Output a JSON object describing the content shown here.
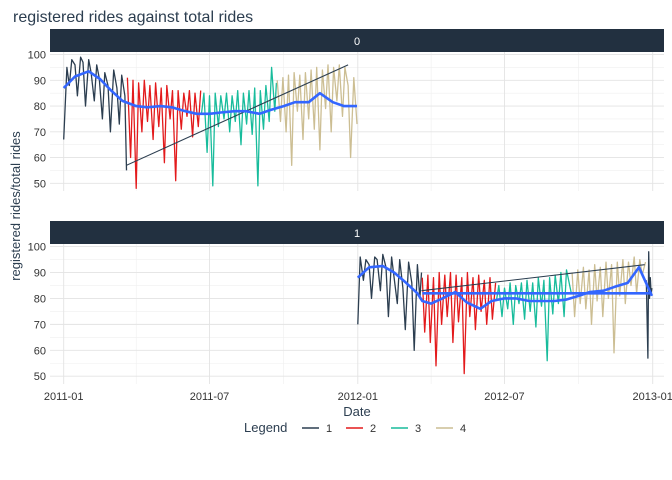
{
  "chart_data": {
    "type": "line",
    "title": "registered rides against total rides",
    "xlabel": "Date",
    "ylabel": "registered rides/total rides",
    "x_ticks": [
      "2011-01",
      "2011-07",
      "2012-01",
      "2012-07",
      "2013-01"
    ],
    "y_ticks": [
      50,
      60,
      70,
      80,
      90,
      100
    ],
    "ylim": [
      47,
      101
    ],
    "xlim": [
      "2010-12-15",
      "2013-01-15"
    ],
    "grid": true,
    "legend": {
      "title": "Legend",
      "placement": "bottom",
      "entries": [
        "1",
        "2",
        "3",
        "4"
      ]
    },
    "colors": {
      "series": [
        "#2c3e50",
        "#e31a1c",
        "#18bc9c",
        "#ccbe93"
      ],
      "smooth": "#3366ff",
      "trend": "#2c3e50",
      "strip": "#223040"
    },
    "facets": [
      {
        "label": "0",
        "series": [
          {
            "name": "1",
            "x": [
              "2011-01-01",
              "2011-01-05",
              "2011-01-08",
              "2011-01-11",
              "2011-01-15",
              "2011-01-18",
              "2011-01-22",
              "2011-01-25",
              "2011-01-28",
              "2011-02-01",
              "2011-02-04",
              "2011-02-08",
              "2011-02-11",
              "2011-02-14",
              "2011-02-18",
              "2011-02-21",
              "2011-02-25",
              "2011-02-28",
              "2011-03-04",
              "2011-03-08",
              "2011-03-11",
              "2011-03-14",
              "2011-03-18",
              "2011-03-20"
            ],
            "y": [
              67,
              95,
              88,
              98,
              96,
              84,
              99,
              97,
              80,
              98,
              93,
              82,
              96,
              91,
              75,
              93,
              88,
              70,
              94,
              87,
              73,
              92,
              84,
              55
            ]
          },
          {
            "name": "2",
            "x": [
              "2011-03-21",
              "2011-03-25",
              "2011-03-28",
              "2011-04-01",
              "2011-04-04",
              "2011-04-08",
              "2011-04-11",
              "2011-04-15",
              "2011-04-18",
              "2011-04-22",
              "2011-04-25",
              "2011-04-29",
              "2011-05-02",
              "2011-05-06",
              "2011-05-09",
              "2011-05-13",
              "2011-05-16",
              "2011-05-20",
              "2011-05-23",
              "2011-05-27",
              "2011-05-30",
              "2011-06-03",
              "2011-06-06",
              "2011-06-10",
              "2011-06-13",
              "2011-06-17",
              "2011-06-20"
            ],
            "y": [
              91,
              60,
              90,
              48,
              89,
              70,
              90,
              74,
              88,
              67,
              89,
              72,
              87,
              58,
              88,
              75,
              86,
              51,
              86,
              71,
              85,
              76,
              86,
              68,
              85,
              72,
              86
            ]
          },
          {
            "name": "3",
            "x": [
              "2011-06-21",
              "2011-06-24",
              "2011-06-28",
              "2011-07-01",
              "2011-07-05",
              "2011-07-08",
              "2011-07-12",
              "2011-07-15",
              "2011-07-19",
              "2011-07-22",
              "2011-07-26",
              "2011-07-29",
              "2011-08-02",
              "2011-08-05",
              "2011-08-09",
              "2011-08-12",
              "2011-08-16",
              "2011-08-19",
              "2011-08-23",
              "2011-08-26",
              "2011-08-30",
              "2011-09-02",
              "2011-09-06",
              "2011-09-09",
              "2011-09-13",
              "2011-09-16",
              "2011-09-20",
              "2011-09-22"
            ],
            "y": [
              77,
              85,
              62,
              84,
              49,
              85,
              72,
              84,
              75,
              85,
              70,
              84,
              74,
              86,
              65,
              85,
              73,
              86,
              69,
              87,
              49,
              86,
              71,
              88,
              74,
              95,
              78,
              89
            ]
          },
          {
            "name": "4",
            "x": [
              "2011-09-23",
              "2011-09-27",
              "2011-09-30",
              "2011-10-04",
              "2011-10-07",
              "2011-10-11",
              "2011-10-14",
              "2011-10-18",
              "2011-10-21",
              "2011-10-25",
              "2011-10-28",
              "2011-11-01",
              "2011-11-04",
              "2011-11-08",
              "2011-11-11",
              "2011-11-15",
              "2011-11-18",
              "2011-11-22",
              "2011-11-25",
              "2011-11-29",
              "2011-12-02",
              "2011-12-06",
              "2011-12-09",
              "2011-12-13",
              "2011-12-16",
              "2011-12-20",
              "2011-12-23",
              "2011-12-27",
              "2011-12-31"
            ],
            "y": [
              90,
              74,
              91,
              70,
              92,
              57,
              93,
              78,
              92,
              67,
              93,
              75,
              94,
              71,
              95,
              63,
              94,
              79,
              96,
              70,
              95,
              82,
              96,
              76,
              95,
              88,
              60,
              91,
              73
            ]
          }
        ],
        "smooth": {
          "x": [
            "2011-01-01",
            "2011-01-15",
            "2011-02-01",
            "2011-02-15",
            "2011-03-01",
            "2011-03-15",
            "2011-04-01",
            "2011-04-15",
            "2011-05-01",
            "2011-05-15",
            "2011-06-01",
            "2011-06-15",
            "2011-07-01",
            "2011-07-15",
            "2011-08-01",
            "2011-08-15",
            "2011-09-01",
            "2011-09-15",
            "2011-10-01",
            "2011-10-15",
            "2011-11-01",
            "2011-11-15",
            "2011-12-01",
            "2011-12-15",
            "2011-12-31"
          ],
          "y": [
            87,
            91.5,
            93.5,
            90.5,
            86,
            82,
            80,
            79.5,
            80,
            79.5,
            78,
            77,
            77,
            77.5,
            78,
            78,
            77,
            78.5,
            80,
            81.5,
            81.5,
            85,
            81.5,
            80,
            80
          ]
        },
        "trend": {
          "x": [
            "2011-03-20",
            "2011-12-20"
          ],
          "y": [
            57,
            96
          ]
        }
      },
      {
        "label": "1",
        "series": [
          {
            "name": "1",
            "x": [
              "2012-01-01",
              "2012-01-04",
              "2012-01-08",
              "2012-01-11",
              "2012-01-15",
              "2012-01-18",
              "2012-01-22",
              "2012-01-25",
              "2012-01-29",
              "2012-02-01",
              "2012-02-05",
              "2012-02-08",
              "2012-02-12",
              "2012-02-15",
              "2012-02-19",
              "2012-02-22",
              "2012-02-26",
              "2012-02-29",
              "2012-03-04",
              "2012-03-08",
              "2012-03-11",
              "2012-03-15",
              "2012-03-18",
              "2012-03-20"
            ],
            "y": [
              70,
              96,
              87,
              95,
              93,
              80,
              96,
              95,
              83,
              97,
              92,
              73,
              96,
              88,
              78,
              95,
              84,
              68,
              94,
              86,
              60,
              93,
              80,
              90
            ]
          },
          {
            "name": "2",
            "x": [
              "2012-03-21",
              "2012-03-24",
              "2012-03-28",
              "2012-03-31",
              "2012-04-04",
              "2012-04-07",
              "2012-04-11",
              "2012-04-14",
              "2012-04-18",
              "2012-04-21",
              "2012-04-25",
              "2012-04-28",
              "2012-05-02",
              "2012-05-05",
              "2012-05-09",
              "2012-05-12",
              "2012-05-16",
              "2012-05-19",
              "2012-05-23",
              "2012-05-26",
              "2012-05-30",
              "2012-06-02",
              "2012-06-06",
              "2012-06-09",
              "2012-06-13",
              "2012-06-16",
              "2012-06-20"
            ],
            "y": [
              88,
              67,
              89,
              63,
              88,
              54,
              90,
              70,
              89,
              73,
              90,
              63,
              89,
              71,
              88,
              51,
              90,
              73,
              88,
              68,
              89,
              75,
              87,
              70,
              88,
              72,
              86
            ]
          },
          {
            "name": "3",
            "x": [
              "2012-06-21",
              "2012-06-24",
              "2012-06-28",
              "2012-07-01",
              "2012-07-05",
              "2012-07-08",
              "2012-07-12",
              "2012-07-15",
              "2012-07-19",
              "2012-07-22",
              "2012-07-26",
              "2012-07-29",
              "2012-08-02",
              "2012-08-05",
              "2012-08-09",
              "2012-08-12",
              "2012-08-16",
              "2012-08-19",
              "2012-08-23",
              "2012-08-26",
              "2012-08-30",
              "2012-09-02",
              "2012-09-06",
              "2012-09-09",
              "2012-09-13",
              "2012-09-16",
              "2012-09-22"
            ],
            "y": [
              79,
              85,
              73,
              84,
              76,
              86,
              70,
              85,
              78,
              86,
              72,
              87,
              75,
              86,
              69,
              88,
              77,
              87,
              56,
              88,
              74,
              89,
              78,
              90,
              73,
              91,
              82
            ]
          },
          {
            "name": "4",
            "x": [
              "2012-09-23",
              "2012-09-26",
              "2012-09-30",
              "2012-10-03",
              "2012-10-07",
              "2012-10-10",
              "2012-10-14",
              "2012-10-17",
              "2012-10-21",
              "2012-10-24",
              "2012-10-28",
              "2012-10-31",
              "2012-11-04",
              "2012-11-07",
              "2012-11-11",
              "2012-11-14",
              "2012-11-18",
              "2012-11-21",
              "2012-11-25",
              "2012-11-28",
              "2012-12-02",
              "2012-12-05",
              "2012-12-09",
              "2012-12-12",
              "2012-12-16",
              "2012-12-19",
              "2012-12-23"
            ],
            "y": [
              90,
              73,
              91,
              78,
              92,
              76,
              91,
              70,
              93,
              79,
              92,
              73,
              94,
              80,
              93,
              59,
              94,
              81,
              95,
              78,
              94,
              85,
              96,
              82,
              95,
              89,
              94
            ]
          },
          {
            "name": "1",
            "x": [
              "2012-12-24",
              "2012-12-26",
              "2012-12-27",
              "2012-12-28",
              "2012-12-29",
              "2012-12-30",
              "2012-12-31"
            ],
            "y": [
              87,
              57,
              98,
              80,
              88,
              82,
              84
            ]
          }
        ],
        "smooth": {
          "x": [
            "2012-01-01",
            "2012-01-15",
            "2012-02-01",
            "2012-02-15",
            "2012-03-01",
            "2012-03-15",
            "2012-03-21",
            "2012-04-01",
            "2012-04-15",
            "2012-05-01",
            "2012-05-15",
            "2012-06-01",
            "2012-06-15",
            "2012-07-01",
            "2012-07-15",
            "2012-08-01",
            "2012-08-15",
            "2012-09-01",
            "2012-09-15",
            "2012-10-01",
            "2012-10-15",
            "2012-11-01",
            "2012-11-15",
            "2012-12-01",
            "2012-12-15",
            "2012-12-31"
          ],
          "y": [
            88,
            92,
            92.5,
            90,
            86,
            82,
            79,
            78,
            80,
            82.5,
            78.5,
            76,
            79,
            80,
            80,
            79,
            79,
            79,
            79.5,
            81,
            82.5,
            83,
            84.5,
            86,
            92,
            81
          ]
        },
        "flat": {
          "x": [
            "2012-03-21",
            "2012-12-31"
          ],
          "y": [
            82,
            82
          ]
        },
        "trend": {
          "x": [
            "2012-03-20",
            "2012-12-22"
          ],
          "y": [
            83,
            93
          ]
        }
      }
    ]
  }
}
